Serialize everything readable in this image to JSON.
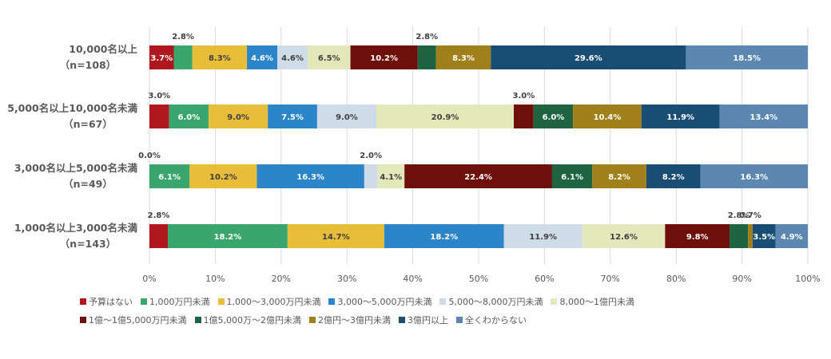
{
  "chart_data": {
    "type": "bar",
    "orientation": "horizontal",
    "stacked": true,
    "percent": true,
    "categories": [
      {
        "name": "10,000名以上",
        "n": "（n=108）"
      },
      {
        "name": "5,000名以上10,000名未満",
        "n": "（n=67）"
      },
      {
        "name": "3,000名以上5,000名未満",
        "n": "（n=49）"
      },
      {
        "name": "1,000名以上3,000名未満",
        "n": "（n=143）"
      }
    ],
    "series": [
      {
        "name": "予算はない",
        "color": "#b0171f",
        "values": [
          3.7,
          3.0,
          0.0,
          2.8
        ]
      },
      {
        "name": "1,000万円未満",
        "color": "#3aa66e",
        "values": [
          2.8,
          6.0,
          6.1,
          18.2
        ]
      },
      {
        "name": "1,000～3,000万円未満",
        "color": "#e8bd3a",
        "values": [
          8.3,
          9.0,
          10.2,
          14.7
        ]
      },
      {
        "name": "3,000～5,000万円未満",
        "color": "#2c85c9",
        "values": [
          4.6,
          7.5,
          16.3,
          18.2
        ]
      },
      {
        "name": "5,000～8,000万円未満",
        "color": "#cfdbe6",
        "values": [
          4.6,
          9.0,
          2.0,
          11.9
        ]
      },
      {
        "name": "8,000～1億円未満",
        "color": "#e3e8bb",
        "values": [
          6.5,
          20.9,
          4.1,
          12.6
        ]
      },
      {
        "name": "1億～1億5,000万円未満",
        "color": "#6e0f0c",
        "values": [
          10.2,
          3.0,
          22.4,
          9.8
        ]
      },
      {
        "name": "1億5,000万～2億円未満",
        "color": "#1f6440",
        "values": [
          2.8,
          6.0,
          6.1,
          2.8
        ]
      },
      {
        "name": "2億円～3億円未満",
        "color": "#a0801b",
        "values": [
          8.3,
          10.4,
          8.2,
          0.7
        ]
      },
      {
        "name": "3億円以上",
        "color": "#1a4d74",
        "values": [
          29.6,
          11.9,
          8.2,
          3.5
        ]
      },
      {
        "name": "全くわからない",
        "color": "#5b87b0",
        "values": [
          18.5,
          13.4,
          16.3,
          4.9
        ]
      }
    ],
    "value_labels": [
      [
        "3.7%",
        "2.8%",
        "8.3%",
        "4.6%",
        "4.6%",
        "6.5%",
        "10.2%",
        "2.8%",
        "8.3%",
        "29.6%",
        "18.5%"
      ],
      [
        "3.0%",
        "6.0%",
        "9.0%",
        "7.5%",
        "9.0%",
        "20.9%",
        "3.0%",
        "6.0%",
        "10.4%",
        "11.9%",
        "13.4%"
      ],
      [
        "0.0%",
        "6.1%",
        "10.2%",
        "16.3%",
        "2.0%",
        "4.1%",
        "22.4%",
        "6.1%",
        "8.2%",
        "8.2%",
        "16.3%"
      ],
      [
        "2.8%",
        "18.2%",
        "14.7%",
        "18.2%",
        "11.9%",
        "12.6%",
        "9.8%",
        "2.8%",
        "0.7%",
        "3.5%",
        "4.9%"
      ]
    ],
    "xlim": [
      0,
      100
    ],
    "x_ticks": [
      "0%",
      "10%",
      "20%",
      "30%",
      "40%",
      "50%",
      "60%",
      "70%",
      "80%",
      "90%",
      "100%"
    ],
    "grid": true,
    "legend_position": "bottom",
    "colors": {
      "axis_text": "#595959",
      "category_text": "#595959",
      "grid": "#d9d9d9",
      "label_dark": "#404040",
      "label_light": "#ffffff"
    }
  }
}
